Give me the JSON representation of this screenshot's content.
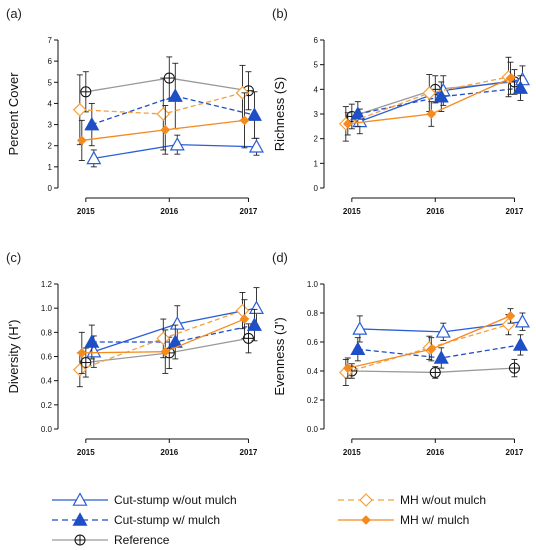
{
  "legend": {
    "items": [
      {
        "label": "Cut-stump w/out mulch",
        "series_key": "cs_out"
      },
      {
        "label": "Cut-stump w/ mulch",
        "series_key": "cs_with"
      },
      {
        "label": "Reference",
        "series_key": "ref"
      },
      {
        "label": "MH w/out mulch",
        "series_key": "mh_out"
      },
      {
        "label": "MH w/ mulch",
        "series_key": "mh_with"
      }
    ]
  },
  "series_styles": {
    "cs_out": {
      "color": "#2a5ed8",
      "dash": "none",
      "marker": "triangle-open"
    },
    "cs_with": {
      "color": "#1f4fc6",
      "dash": "dashed",
      "marker": "triangle-filled"
    },
    "ref": {
      "color": "#999999",
      "dash": "none",
      "marker": "circle-plus"
    },
    "mh_out": {
      "color": "#f4a040",
      "dash": "dashed",
      "marker": "diamond-open"
    },
    "mh_with": {
      "color": "#f58a1f",
      "dash": "none",
      "marker": "diamond-filled"
    }
  },
  "chart_data": [
    {
      "panel": "(a)",
      "type": "line",
      "ylabel": "Percent Cover",
      "x": [
        "2015",
        "2016",
        "2017"
      ],
      "ylim": [
        0,
        7
      ],
      "yticks": [
        "0",
        "1",
        "2",
        "3",
        "4",
        "5",
        "6",
        "7"
      ],
      "series": [
        {
          "key": "cs_out",
          "values": [
            1.4,
            2.05,
            1.95
          ],
          "err": [
            0.4,
            0.45,
            0.4
          ]
        },
        {
          "key": "cs_with",
          "values": [
            3.0,
            4.35,
            3.45
          ],
          "err": [
            1.0,
            1.55,
            1.1
          ]
        },
        {
          "key": "ref",
          "values": [
            4.55,
            5.2,
            4.6
          ],
          "err": [
            0.95,
            1.0,
            0.9
          ]
        },
        {
          "key": "mh_out",
          "values": [
            3.7,
            3.5,
            4.5
          ],
          "err": [
            1.65,
            1.7,
            1.3
          ]
        },
        {
          "key": "mh_with",
          "values": [
            2.25,
            2.75,
            3.2
          ],
          "err": [
            0.95,
            1.15,
            1.3
          ]
        }
      ]
    },
    {
      "panel": "(b)",
      "type": "line",
      "ylabel": "Richness (S)",
      "x": [
        "2015",
        "2016",
        "2017"
      ],
      "ylim": [
        0,
        6
      ],
      "yticks": [
        "0",
        "1",
        "2",
        "3",
        "4",
        "5",
        "6"
      ],
      "series": [
        {
          "key": "cs_out",
          "values": [
            2.7,
            3.95,
            4.4
          ],
          "err": [
            0.5,
            0.6,
            0.55
          ]
        },
        {
          "key": "cs_with",
          "values": [
            3.0,
            3.7,
            4.05
          ],
          "err": [
            0.5,
            0.6,
            0.5
          ]
        },
        {
          "key": "ref",
          "values": [
            2.9,
            4.0,
            4.3
          ],
          "err": [
            0.5,
            0.55,
            0.5
          ]
        },
        {
          "key": "mh_out",
          "values": [
            2.6,
            3.85,
            4.5
          ],
          "err": [
            0.7,
            0.75,
            0.8
          ]
        },
        {
          "key": "mh_with",
          "values": [
            2.6,
            3.0,
            4.45
          ],
          "err": [
            0.45,
            0.5,
            0.65
          ]
        }
      ]
    },
    {
      "panel": "(c)",
      "type": "line",
      "ylabel": "Diversity (H')",
      "x": [
        "2015",
        "2016",
        "2017"
      ],
      "ylim": [
        0,
        1.2
      ],
      "yticks": [
        "0.0",
        "0.2",
        "0.4",
        "0.6",
        "0.8",
        "1.0",
        "1.2"
      ],
      "series": [
        {
          "key": "cs_out",
          "values": [
            0.64,
            0.87,
            1.0
          ],
          "err": [
            0.13,
            0.15,
            0.17
          ]
        },
        {
          "key": "cs_with",
          "values": [
            0.72,
            0.72,
            0.86
          ],
          "err": [
            0.14,
            0.14,
            0.13
          ]
        },
        {
          "key": "ref",
          "values": [
            0.55,
            0.63,
            0.75
          ],
          "err": [
            0.12,
            0.13,
            0.12
          ]
        },
        {
          "key": "mh_out",
          "values": [
            0.49,
            0.75,
            0.98
          ],
          "err": [
            0.14,
            0.16,
            0.15
          ]
        },
        {
          "key": "mh_with",
          "values": [
            0.63,
            0.64,
            0.91
          ],
          "err": [
            0.17,
            0.18,
            0.16
          ]
        }
      ]
    },
    {
      "panel": "(d)",
      "type": "line",
      "ylabel": "Evenness (J')",
      "x": [
        "2015",
        "2016",
        "2017"
      ],
      "ylim": [
        0,
        1.0
      ],
      "yticks": [
        "0.0",
        "0.2",
        "0.4",
        "0.6",
        "0.8",
        "1.0"
      ],
      "series": [
        {
          "key": "cs_out",
          "values": [
            0.69,
            0.67,
            0.74
          ],
          "err": [
            0.09,
            0.06,
            0.06
          ]
        },
        {
          "key": "cs_with",
          "values": [
            0.55,
            0.49,
            0.58
          ],
          "err": [
            0.08,
            0.07,
            0.07
          ]
        },
        {
          "key": "ref",
          "values": [
            0.4,
            0.39,
            0.42
          ],
          "err": [
            0.05,
            0.04,
            0.06
          ]
        },
        {
          "key": "mh_out",
          "values": [
            0.39,
            0.56,
            0.72
          ],
          "err": [
            0.09,
            0.08,
            0.07
          ]
        },
        {
          "key": "mh_with",
          "values": [
            0.42,
            0.55,
            0.78
          ],
          "err": [
            0.07,
            0.08,
            0.05
          ]
        }
      ]
    }
  ]
}
